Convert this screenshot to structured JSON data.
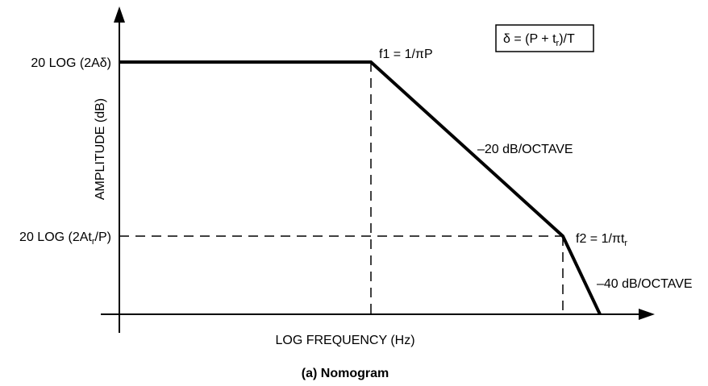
{
  "diagram": {
    "y_axis_label": "AMPLITUDE (dB)",
    "x_axis_label": "LOG FREQUENCY (Hz)",
    "level_high": {
      "pre": "20 LOG (2A",
      "symbol": "δ",
      "post": ")"
    },
    "level_low": {
      "pre": "20 LOG (2At",
      "sub": "r",
      "post": "/P)"
    },
    "f1": {
      "pre": "f1 = 1/",
      "pi": "π",
      "post": "P"
    },
    "f2": {
      "pre": "f2 = 1/",
      "pi": "π",
      "post": "t",
      "sub": "r"
    },
    "slope1": "–20 dB/OCTAVE",
    "slope2": "–40 dB/OCTAVE",
    "formula": {
      "delta": "δ",
      "mid": " = (P + t",
      "sub": "r",
      "post": ")/T"
    },
    "caption": "(a) Nomogram"
  },
  "colors": {
    "line": "#000000",
    "background": "#ffffff"
  }
}
